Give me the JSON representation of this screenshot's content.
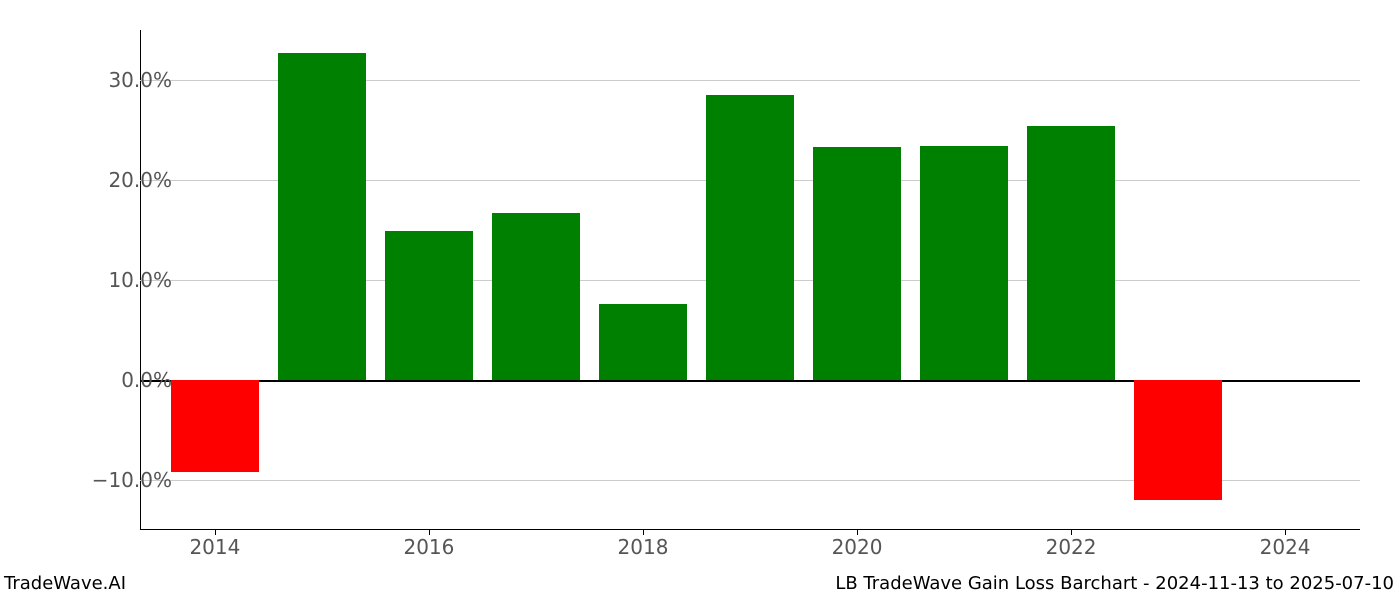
{
  "chart": {
    "type": "bar",
    "background_color": "#ffffff",
    "grid_color": "#cccccc",
    "axis_color": "#000000",
    "tick_label_color": "#555555",
    "tick_label_fontsize": 20,
    "footer_fontsize": 18,
    "footer_color": "#000000",
    "ylim": [
      -15,
      35
    ],
    "ytick_step": 10,
    "yticks": [
      -10,
      0,
      10,
      20,
      30
    ],
    "ytick_labels": [
      "−10.0%",
      "0.0%",
      "10.0%",
      "20.0%",
      "30.0%"
    ],
    "xticks": [
      2014,
      2016,
      2018,
      2020,
      2022,
      2024
    ],
    "xtick_labels": [
      "2014",
      "2016",
      "2018",
      "2020",
      "2022",
      "2024"
    ],
    "xlim": [
      2013.3,
      2024.7
    ],
    "years": [
      2014,
      2015,
      2016,
      2017,
      2018,
      2019,
      2020,
      2021,
      2022,
      2023
    ],
    "values": [
      -9.2,
      32.7,
      14.9,
      16.7,
      7.6,
      28.5,
      23.3,
      23.4,
      25.4,
      -12.0
    ],
    "bar_colors": [
      "#ff0000",
      "#008000",
      "#008000",
      "#008000",
      "#008000",
      "#008000",
      "#008000",
      "#008000",
      "#008000",
      "#ff0000"
    ],
    "bar_width": 0.82,
    "positive_color": "#008000",
    "negative_color": "#ff0000"
  },
  "footer": {
    "left": "TradeWave.AI",
    "right": "LB TradeWave Gain Loss Barchart - 2024-11-13 to 2025-07-10"
  }
}
